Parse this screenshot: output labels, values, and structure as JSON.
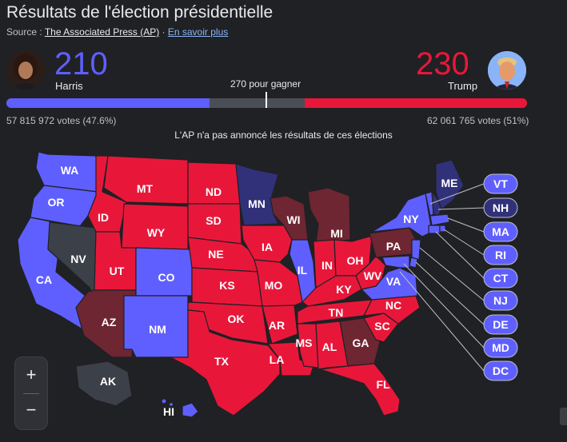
{
  "header": {
    "title": "Résultats de l'élection présidentielle",
    "source_label": "Source : ",
    "source_name": "The Associated Press (AP)",
    "separator": " · ",
    "learn_more": "En savoir plus"
  },
  "candidates": {
    "dem": {
      "name": "Harris",
      "electoral_votes": "210",
      "ev": 210,
      "popular": "57 815 972 votes (47.6%)",
      "color": "#5f5fff"
    },
    "rep": {
      "name": "Trump",
      "electoral_votes": "230",
      "ev": 230,
      "popular": "62 061 765 votes (51%)",
      "color": "#e8173a"
    }
  },
  "threshold": {
    "label": "270 pour gagner",
    "value": 270,
    "total": 538
  },
  "note": "L'AP n'a pas annoncé les résultats de ces élections",
  "colors": {
    "dem_won": "#5f5fff",
    "rep_won": "#e8173a",
    "dem_leading": "#31317a",
    "rep_leading": "#6e2632",
    "uncalled": "#3c4048",
    "background": "#202124"
  },
  "states": [
    {
      "abbr": "WA",
      "status": "dem_won"
    },
    {
      "abbr": "OR",
      "status": "dem_won"
    },
    {
      "abbr": "CA",
      "status": "dem_won"
    },
    {
      "abbr": "NV",
      "status": "uncalled"
    },
    {
      "abbr": "ID",
      "status": "rep_won"
    },
    {
      "abbr": "MT",
      "status": "rep_won"
    },
    {
      "abbr": "WY",
      "status": "rep_won"
    },
    {
      "abbr": "UT",
      "status": "rep_won"
    },
    {
      "abbr": "AZ",
      "status": "rep_leading"
    },
    {
      "abbr": "CO",
      "status": "dem_won"
    },
    {
      "abbr": "NM",
      "status": "dem_won"
    },
    {
      "abbr": "ND",
      "status": "rep_won"
    },
    {
      "abbr": "SD",
      "status": "rep_won"
    },
    {
      "abbr": "NE",
      "status": "rep_won"
    },
    {
      "abbr": "KS",
      "status": "rep_won"
    },
    {
      "abbr": "OK",
      "status": "rep_won"
    },
    {
      "abbr": "TX",
      "status": "rep_won"
    },
    {
      "abbr": "MN",
      "status": "dem_leading"
    },
    {
      "abbr": "IA",
      "status": "rep_won"
    },
    {
      "abbr": "MO",
      "status": "rep_won"
    },
    {
      "abbr": "AR",
      "status": "rep_won"
    },
    {
      "abbr": "LA",
      "status": "rep_won"
    },
    {
      "abbr": "WI",
      "status": "rep_leading"
    },
    {
      "abbr": "IL",
      "status": "dem_won"
    },
    {
      "abbr": "MI",
      "status": "rep_leading"
    },
    {
      "abbr": "IN",
      "status": "rep_won"
    },
    {
      "abbr": "OH",
      "status": "rep_won"
    },
    {
      "abbr": "KY",
      "status": "rep_won"
    },
    {
      "abbr": "TN",
      "status": "rep_won"
    },
    {
      "abbr": "MS",
      "status": "rep_won"
    },
    {
      "abbr": "AL",
      "status": "rep_won"
    },
    {
      "abbr": "GA",
      "status": "rep_leading"
    },
    {
      "abbr": "FL",
      "status": "rep_won"
    },
    {
      "abbr": "SC",
      "status": "rep_won"
    },
    {
      "abbr": "NC",
      "status": "rep_won"
    },
    {
      "abbr": "VA",
      "status": "dem_won"
    },
    {
      "abbr": "WV",
      "status": "rep_won"
    },
    {
      "abbr": "PA",
      "status": "rep_leading"
    },
    {
      "abbr": "NY",
      "status": "dem_won"
    },
    {
      "abbr": "ME",
      "status": "dem_leading"
    },
    {
      "abbr": "AK",
      "status": "uncalled"
    },
    {
      "abbr": "HI",
      "status": "dem_won"
    }
  ],
  "small_states": [
    {
      "abbr": "VT",
      "status": "dem_won"
    },
    {
      "abbr": "NH",
      "status": "dem_leading"
    },
    {
      "abbr": "MA",
      "status": "dem_won"
    },
    {
      "abbr": "RI",
      "status": "dem_won"
    },
    {
      "abbr": "CT",
      "status": "dem_won"
    },
    {
      "abbr": "NJ",
      "status": "dem_won"
    },
    {
      "abbr": "DE",
      "status": "dem_won"
    },
    {
      "abbr": "MD",
      "status": "dem_won"
    },
    {
      "abbr": "DC",
      "status": "dem_won"
    }
  ],
  "zoom": {
    "in": "+",
    "out": "−"
  }
}
